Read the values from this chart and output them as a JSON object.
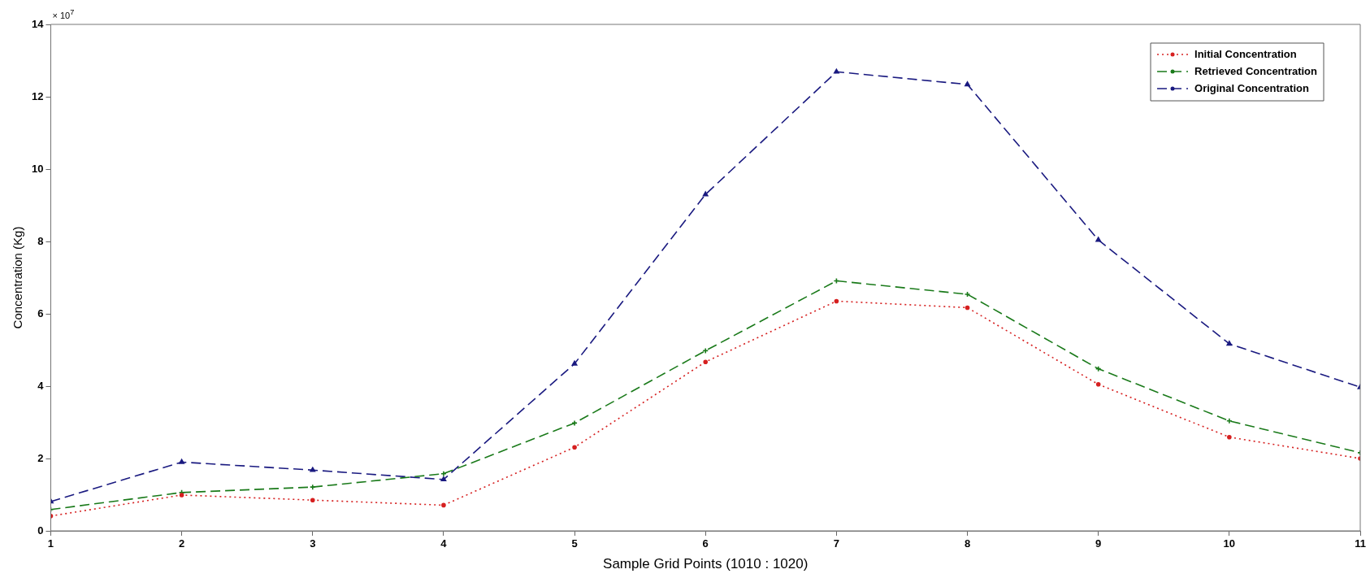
{
  "chart_data": {
    "type": "line",
    "xlabel": "Sample Grid Points (1010 : 1020)",
    "ylabel": "Concentration (Kg)",
    "annotations": [
      "× 10$^{7}$"
    ],
    "x": [
      1,
      2,
      3,
      4,
      5,
      6,
      7,
      8,
      9,
      10,
      11
    ],
    "series": [
      {
        "name": "Initial Concentration",
        "color": "#d62020",
        "marker": "circle",
        "line_style": "dotted",
        "values": [
          0.41,
          0.99,
          0.85,
          0.71,
          2.31,
          4.67,
          6.35,
          6.17,
          4.05,
          2.59,
          2.0
        ]
      },
      {
        "name": "Retrieved Concentration",
        "color": "#1a7a1a",
        "marker": "cross",
        "line_style": "dashed",
        "values": [
          0.59,
          1.06,
          1.21,
          1.58,
          2.98,
          4.98,
          6.91,
          6.54,
          4.48,
          3.04,
          2.16
        ]
      },
      {
        "name": "Original Concentration",
        "color": "#1a1a80",
        "marker": "triangle",
        "line_style": "dashed",
        "values": [
          0.81,
          1.9,
          1.68,
          1.42,
          4.62,
          9.3,
          12.69,
          12.34,
          8.04,
          5.17,
          3.97
        ]
      }
    ],
    "xlim": [
      1,
      11
    ],
    "xticks": [
      1,
      2,
      3,
      4,
      5,
      6,
      7,
      8,
      9,
      10,
      11
    ],
    "ylim": [
      0,
      14
    ],
    "yticks": [
      0,
      2,
      4,
      6,
      8,
      10,
      12,
      14
    ],
    "grid": false,
    "legend": "top right"
  }
}
